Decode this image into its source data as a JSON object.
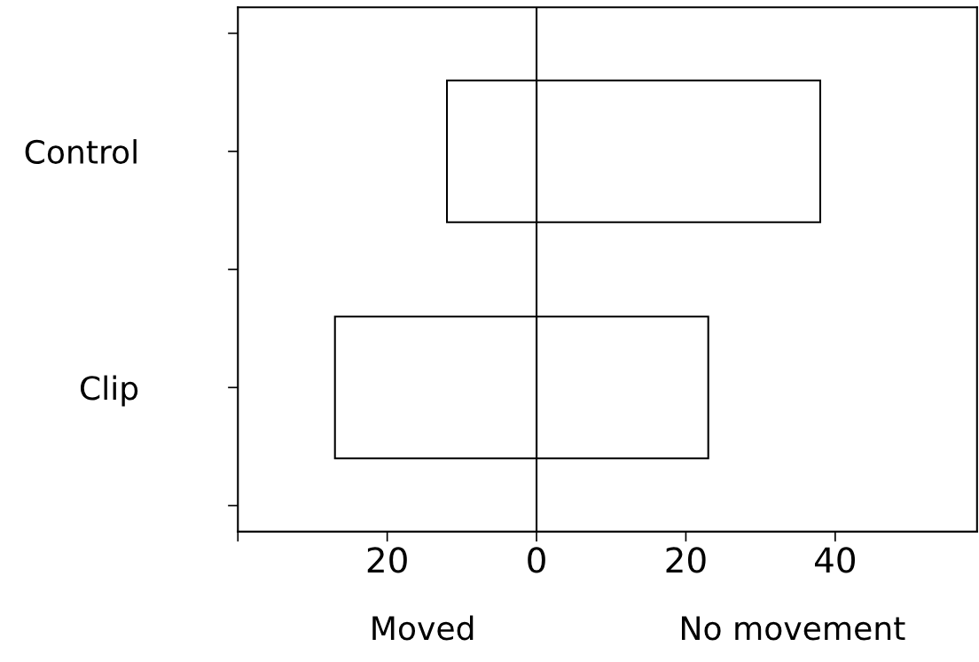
{
  "chart_data": {
    "type": "bar",
    "orientation": "horizontal",
    "stacked": true,
    "categories": [
      "Control",
      "Clip"
    ],
    "series": [
      {
        "color": "#ffffff",
        "values": [
          -12,
          -27
        ]
      },
      {
        "color": "#ffffff",
        "values": [
          38,
          23
        ]
      }
    ],
    "xlim": [
      -40,
      59
    ],
    "xticks": [
      {
        "value": -40,
        "label": null
      },
      {
        "value": -20,
        "label": "20"
      },
      0,
      {
        "value": 20,
        "label": "20"
      },
      40
    ],
    "ref_lines": [
      {
        "axis": "x",
        "value": 0,
        "color": "#000000"
      }
    ],
    "annotations": [
      "Moved",
      "No movement"
    ],
    "grid": false,
    "legend": false
  }
}
